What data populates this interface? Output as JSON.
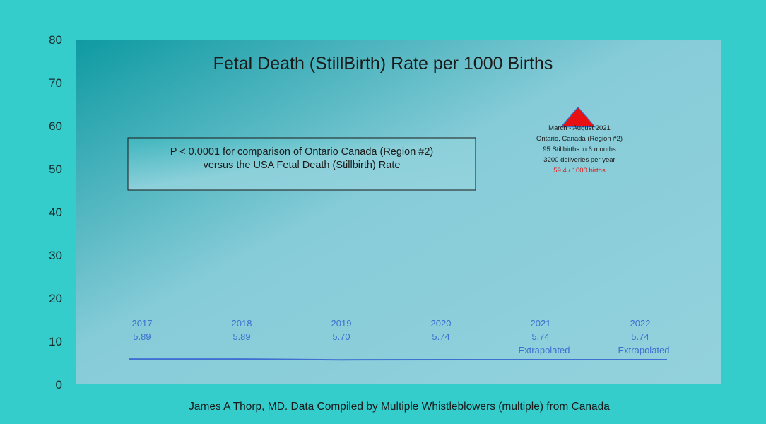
{
  "chart_data": {
    "type": "line",
    "title": "Fetal Death (StillBirth) Rate per 1000 Births",
    "footer": "James A Thorp, MD. Data Compiled by Multiple Whistleblowers (multiple) from Canada",
    "ylim": [
      0,
      80
    ],
    "yticks": [
      "0",
      "10",
      "20",
      "30",
      "40",
      "50",
      "60",
      "70",
      "80"
    ],
    "grid": false,
    "categories": [
      "2017",
      "2018",
      "2019",
      "2020",
      "2021",
      "2022"
    ],
    "values": [
      5.89,
      5.89,
      5.7,
      5.74,
      5.74,
      5.74
    ],
    "value_labels": [
      "5.89",
      "5.89",
      "5.70",
      "5.74",
      "5.74",
      "5.74"
    ],
    "notes": [
      "",
      "",
      "",
      "",
      "Extrapolated",
      "Extrapolated"
    ],
    "line_color": "#3f6fd0",
    "p_value_box": {
      "line1": "P < 0.0001 for comparison of Ontario Canada (Region #2)",
      "line2": "versus the USA Fetal Death (Stillbirth) Rate"
    },
    "ontario_point": {
      "value": 59.4,
      "marker_color": "#e81010",
      "lines": [
        "March - August 2021",
        "Ontario, Canada (Region #2)",
        "95 Stillbirths in 6 months",
        "3200 deliveries per year"
      ],
      "rate_label": "59.4 / 1000 births"
    }
  }
}
